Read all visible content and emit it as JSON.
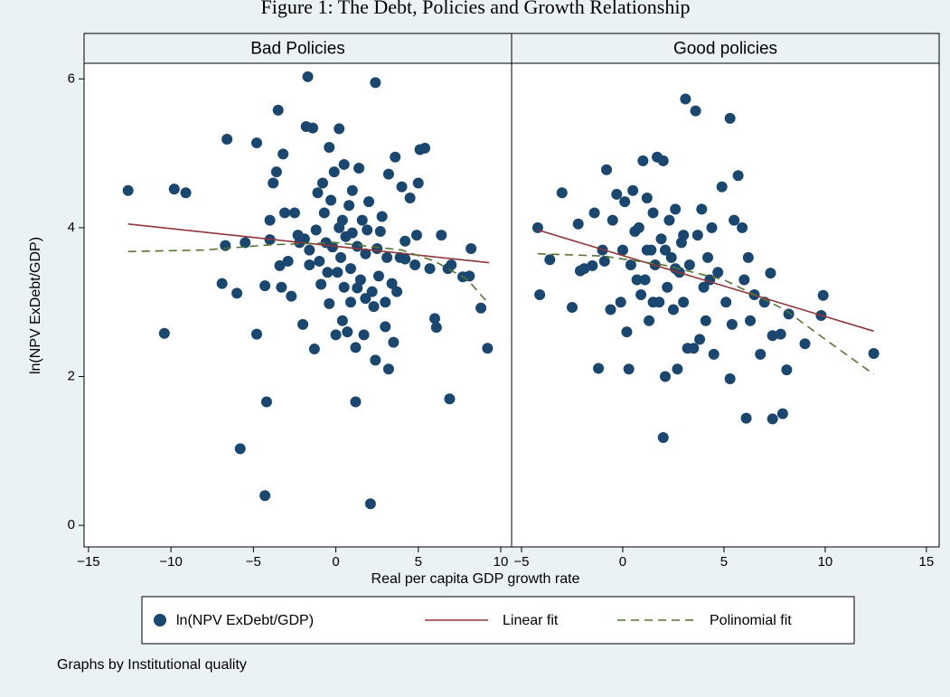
{
  "chart_data": {
    "type": "scatter",
    "title": "Figure 1: The Debt, Policies and Growth Relationship",
    "xlabel": "Real per capita GDP growth rate",
    "ylabel": "ln(NPV ExDebt/GDP)",
    "note": "Graphs by Institutional quality",
    "ylim": [
      -0.29,
      6.21
    ],
    "yticks": [
      0,
      2,
      4,
      6
    ],
    "series": [
      {
        "name": "ln(NPV ExDebt/GDP)",
        "color": "#1a476f",
        "marker": "circle"
      },
      {
        "name": "Linear fit",
        "color": "#90353b",
        "style": "solid"
      },
      {
        "name": "Polinomial fit",
        "color": "#55752f",
        "style": "dashed"
      }
    ],
    "panels": [
      {
        "title": "Bad Policies",
        "xlim": [
          -15.27,
          10.66
        ],
        "xticks": [
          {
            "value": -15,
            "label": "−15"
          },
          {
            "value": -10,
            "label": "−10"
          },
          {
            "value": -5,
            "label": "−5"
          },
          0,
          5,
          10
        ],
        "data": [
          {
            "x": [
              -12.6,
              -10.4,
              -9.8,
              -9.1,
              -6.6,
              -6.7,
              -6.9,
              -6.0,
              -5.5,
              -5.8,
              -4.8,
              -4.8,
              -4.3,
              -4.2,
              -4.3,
              -4.0,
              -4.0,
              -3.8,
              -3.6,
              -3.5,
              -3.4,
              -3.3,
              -3.2,
              -3.1,
              -2.9,
              -2.7,
              -2.5,
              -2.3,
              -2.2,
              -2.0,
              -1.9,
              -1.8,
              -1.7,
              -1.6,
              -1.4,
              -1.3,
              -1.2,
              -1.1,
              -1.0,
              -0.9,
              -0.8,
              -0.7,
              -0.6,
              -0.5,
              -0.4,
              -0.4,
              -0.3,
              -0.2,
              -0.1,
              0.0,
              0.1,
              0.2,
              0.2,
              0.3,
              0.4,
              0.4,
              0.5,
              0.5,
              0.6,
              0.7,
              0.8,
              0.9,
              1.0,
              1.0,
              1.2,
              1.2,
              1.3,
              1.3,
              1.4,
              1.5,
              1.6,
              1.7,
              1.8,
              1.9,
              2.0,
              2.1,
              2.2,
              2.3,
              2.4,
              2.4,
              2.5,
              2.7,
              2.8,
              3.0,
              3.1,
              3.2,
              3.2,
              3.4,
              3.5,
              3.6,
              3.7,
              3.9,
              4.0,
              4.2,
              4.5,
              4.9,
              5.0,
              5.1,
              5.4,
              5.7,
              6.1,
              6.0,
              6.4,
              6.8,
              6.9,
              7.0,
              7.7,
              8.1,
              8.2,
              8.8,
              9.2,
              4.8,
              4.2,
              3.0,
              2.6,
              1.8,
              0.9,
              -1.6
            ],
            "y": [
              4.5,
              2.58,
              4.52,
              4.47,
              5.19,
              3.76,
              3.25,
              3.12,
              3.8,
              1.03,
              5.14,
              2.57,
              0.4,
              1.66,
              3.22,
              3.84,
              4.1,
              4.6,
              4.75,
              5.58,
              3.49,
              3.2,
              4.99,
              4.2,
              3.55,
              3.08,
              4.2,
              3.9,
              3.8,
              2.7,
              3.85,
              5.36,
              6.03,
              3.7,
              5.34,
              2.37,
              3.97,
              4.47,
              3.55,
              3.24,
              4.6,
              4.2,
              3.8,
              3.4,
              2.98,
              5.08,
              4.37,
              3.74,
              4.75,
              2.56,
              3.4,
              4.0,
              5.33,
              3.6,
              2.75,
              4.1,
              3.2,
              4.85,
              3.88,
              2.6,
              4.3,
              3.45,
              3.93,
              4.5,
              2.39,
              1.66,
              3.19,
              3.75,
              4.8,
              3.3,
              4.1,
              2.56,
              3.65,
              3.97,
              4.35,
              0.29,
              3.14,
              2.94,
              5.95,
              2.22,
              3.72,
              3.95,
              4.15,
              2.67,
              3.6,
              2.1,
              4.72,
              3.25,
              2.46,
              4.95,
              3.14,
              3.6,
              4.55,
              3.82,
              4.4,
              3.9,
              4.6,
              5.05,
              5.07,
              3.45,
              2.66,
              2.78,
              3.9,
              3.45,
              1.7,
              3.5,
              3.34,
              3.35,
              3.72,
              2.92,
              2.38,
              3.5,
              3.58,
              3.0,
              3.35,
              3.05,
              3.0,
              3.5
            ]
          },
          {
            "x": [
              -12.6,
              9.3
            ],
            "y": [
              4.05,
              3.53
            ]
          },
          {
            "x": [
              -12.6,
              -8,
              -4,
              0,
              4,
              6,
              8,
              9.3
            ],
            "y": [
              3.68,
              3.7,
              3.77,
              3.8,
              3.7,
              3.55,
              3.3,
              2.97
            ]
          }
        ]
      },
      {
        "title": "Good policies",
        "xlim": [
          -5.49,
          15.63
        ],
        "xticks": [
          {
            "value": -5,
            "label": "−5"
          },
          0,
          5,
          10,
          15
        ],
        "data": [
          {
            "x": [
              -4.2,
              -4.1,
              -3.6,
              -3.0,
              -2.5,
              -2.2,
              -1.9,
              -1.5,
              -1.4,
              -1.2,
              -1.0,
              -0.9,
              -0.8,
              -0.6,
              -0.5,
              -0.3,
              -0.1,
              0.0,
              0.1,
              0.2,
              0.3,
              0.4,
              0.5,
              0.6,
              0.8,
              0.9,
              1.0,
              1.1,
              1.2,
              1.3,
              1.4,
              1.5,
              1.6,
              1.7,
              1.8,
              1.9,
              2.0,
              2.0,
              2.1,
              2.1,
              2.2,
              2.3,
              2.4,
              2.5,
              2.6,
              2.7,
              2.8,
              2.9,
              3.0,
              3.1,
              3.2,
              3.3,
              3.5,
              3.6,
              3.7,
              3.8,
              3.9,
              4.0,
              4.1,
              4.2,
              4.4,
              4.5,
              4.7,
              4.9,
              5.1,
              5.3,
              5.3,
              5.4,
              5.5,
              5.7,
              5.9,
              6.0,
              6.1,
              6.2,
              6.3,
              6.5,
              6.8,
              7.0,
              7.3,
              7.4,
              7.4,
              7.9,
              7.8,
              8.1,
              8.2,
              9.0,
              9.8,
              9.9,
              12.4,
              -2.1,
              0.7,
              1.5,
              2.6,
              4.3,
              1.2,
              3.0
            ],
            "y": [
              4.0,
              3.1,
              3.57,
              4.47,
              2.93,
              4.05,
              3.45,
              3.49,
              4.2,
              2.11,
              3.7,
              3.55,
              4.78,
              2.9,
              4.1,
              4.45,
              3.0,
              3.7,
              4.35,
              2.6,
              2.1,
              3.5,
              4.5,
              3.95,
              4.0,
              3.1,
              4.9,
              3.3,
              4.4,
              2.75,
              3.7,
              4.2,
              3.5,
              4.95,
              3.0,
              3.85,
              1.18,
              4.9,
              2.0,
              3.7,
              3.2,
              4.1,
              3.6,
              2.9,
              4.25,
              2.1,
              3.4,
              3.8,
              3.0,
              5.73,
              2.38,
              3.5,
              2.38,
              5.57,
              3.9,
              2.5,
              4.25,
              3.2,
              2.75,
              3.6,
              4.0,
              2.3,
              3.4,
              4.55,
              3.0,
              5.47,
              1.97,
              2.7,
              4.1,
              4.7,
              4.0,
              3.3,
              1.44,
              3.6,
              2.75,
              3.1,
              2.3,
              3.0,
              3.39,
              1.43,
              2.55,
              1.5,
              2.57,
              2.09,
              2.84,
              2.44,
              2.82,
              3.09,
              2.31,
              3.42,
              3.3,
              3.0,
              3.45,
              3.3,
              3.7,
              3.9
            ]
          },
          {
            "x": [
              -4.2,
              12.4
            ],
            "y": [
              3.97,
              2.61
            ]
          },
          {
            "x": [
              -4.2,
              -1,
              2,
              5,
              8,
              10,
              12.4
            ],
            "y": [
              3.65,
              3.62,
              3.5,
              3.3,
              2.9,
              2.5,
              2.03
            ]
          }
        ]
      }
    ]
  }
}
